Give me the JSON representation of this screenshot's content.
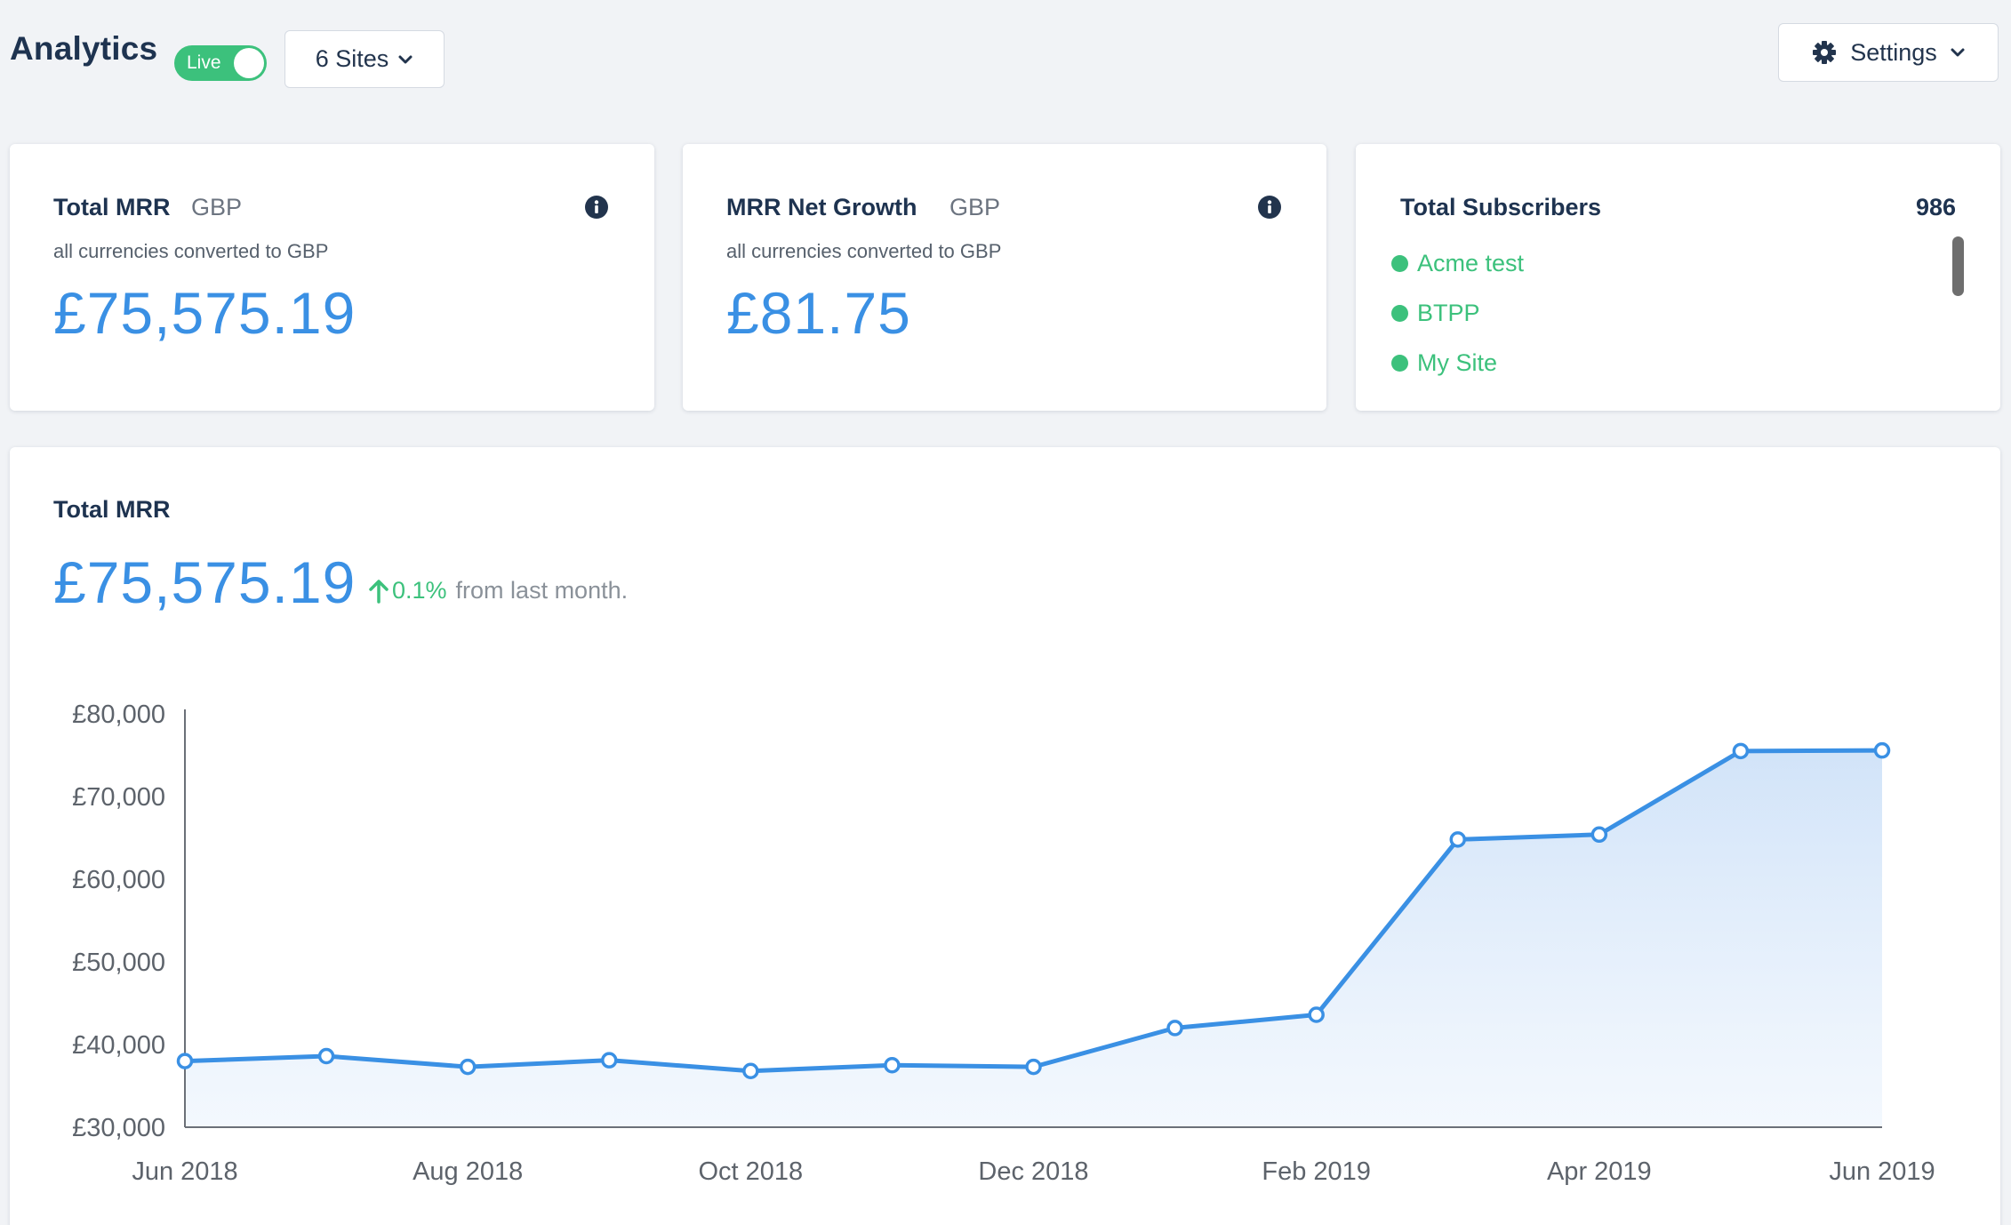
{
  "header": {
    "title": "Analytics",
    "live_label": "Live",
    "sites_label": "6 Sites",
    "settings_label": "Settings"
  },
  "cards": {
    "total_mrr": {
      "title": "Total MRR",
      "currency": "GBP",
      "note": "all currencies converted to GBP",
      "value": "£75,575.19"
    },
    "net_growth": {
      "title": "MRR Net Growth",
      "currency": "GBP",
      "note": "all currencies converted to GBP",
      "value": "£81.75"
    },
    "subscribers": {
      "title": "Total Subscribers",
      "count": "986",
      "sites": [
        "Acme test",
        "BTPP",
        "My Site"
      ]
    }
  },
  "panel": {
    "title": "Total MRR",
    "value": "£75,575.19",
    "change_pct": "0.1%",
    "change_text": "from last month."
  },
  "colors": {
    "accent": "#3a90e4",
    "live": "#3cc17c",
    "heading": "#1e3350"
  },
  "chart_data": {
    "type": "area",
    "x": [
      "Jun 2018",
      "Jul 2018",
      "Aug 2018",
      "Sep 2018",
      "Oct 2018",
      "Nov 2018",
      "Dec 2018",
      "Jan 2019",
      "Feb 2019",
      "Mar 2019",
      "Apr 2019",
      "May 2019",
      "Jun 2019"
    ],
    "x_tick_labels": [
      "Jun 2018",
      "Aug 2018",
      "Oct 2018",
      "Dec 2018",
      "Feb 2019",
      "Apr 2019",
      "Jun 2019"
    ],
    "series": [
      {
        "values": [
          38000,
          38600,
          37300,
          38100,
          36800,
          37500,
          37300,
          42000,
          43600,
          64800,
          65400,
          75500,
          75575.19
        ]
      }
    ],
    "ylim": [
      30000,
      80000
    ],
    "y_tick_labels": [
      "£80,000",
      "£70,000",
      "£60,000",
      "£50,000",
      "£40,000",
      "£30,000"
    ],
    "y_tick_values": [
      80000,
      70000,
      60000,
      50000,
      40000,
      30000
    ],
    "grid": false,
    "legend": "none"
  }
}
